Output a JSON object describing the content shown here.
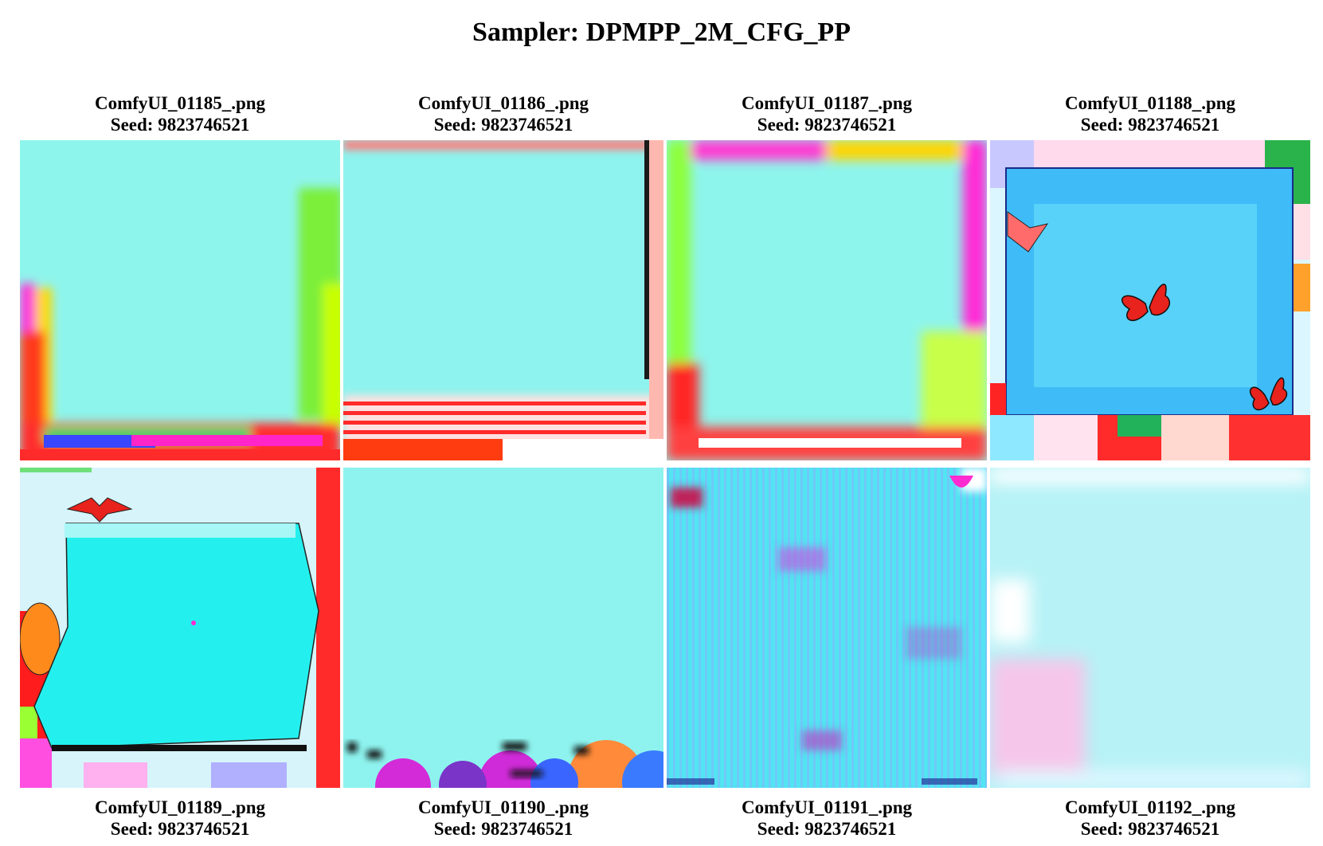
{
  "title": "Sampler: DPMPP_2M_CFG_PP",
  "images": [
    {
      "filename": "ComfyUI_01185_.png",
      "seed": "Seed: 9823746521"
    },
    {
      "filename": "ComfyUI_01186_.png",
      "seed": "Seed: 9823746521"
    },
    {
      "filename": "ComfyUI_01187_.png",
      "seed": "Seed: 9823746521"
    },
    {
      "filename": "ComfyUI_01188_.png",
      "seed": "Seed: 9823746521"
    },
    {
      "filename": "ComfyUI_01189_.png",
      "seed": "Seed: 9823746521"
    },
    {
      "filename": "ComfyUI_01190_.png",
      "seed": "Seed: 9823746521"
    },
    {
      "filename": "ComfyUI_01191_.png",
      "seed": "Seed: 9823746521"
    },
    {
      "filename": "ComfyUI_01192_.png",
      "seed": "Seed: 9823746521"
    }
  ]
}
